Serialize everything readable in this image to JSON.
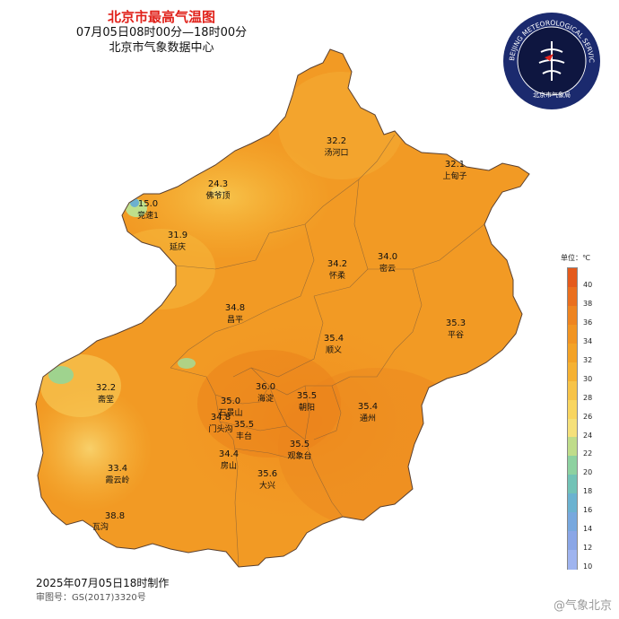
{
  "title": "北京市最高气温图",
  "subtitle": "07月05日08时00分—18时00分",
  "source": "北京市气象数据中心",
  "footer_date": "2025年07月05日18时制作",
  "footer_review": "审图号：GS(2017)3320号",
  "watermark": "@气象北京",
  "logo": {
    "ring_text": "BEIJING METEOROLOGICAL SERVICE",
    "name": "北京市气象局"
  },
  "legend": {
    "title": "单位：℃",
    "ticks": [
      "40",
      "38",
      "36",
      "34",
      "32",
      "30",
      "28",
      "26",
      "24",
      "22",
      "20",
      "18",
      "16",
      "14",
      "12",
      "10"
    ],
    "colors": [
      "#e45a1c",
      "#ea6f1e",
      "#ee8420",
      "#f19422",
      "#f3a226",
      "#f5b132",
      "#f7c348",
      "#f8d560",
      "#f5e07a",
      "#bfdc8a",
      "#8dd1a0",
      "#72c2b6",
      "#6bb2d0",
      "#78a8de",
      "#8aa6e6",
      "#9fb4ef"
    ]
  },
  "stations": [
    {
      "value": "32.2",
      "name": "汤河口"
    },
    {
      "value": "32.1",
      "name": "上甸子"
    },
    {
      "value": "24.3",
      "name": "佛爷顶"
    },
    {
      "value": "15.0",
      "name": "竞速1"
    },
    {
      "value": "31.9",
      "name": "延庆"
    },
    {
      "value": "34.2",
      "name": "怀柔"
    },
    {
      "value": "34.0",
      "name": "密云"
    },
    {
      "value": "34.8",
      "name": "昌平"
    },
    {
      "value": "35.3",
      "name": "平谷"
    },
    {
      "value": "35.4",
      "name": "顺义"
    },
    {
      "value": "32.2",
      "name": "斋堂"
    },
    {
      "value": "36.0",
      "name": "海淀"
    },
    {
      "value": "35.5",
      "name": "朝阳"
    },
    {
      "value": "35.0",
      "name": "石景山"
    },
    {
      "value": "34.8",
      "name": "门头沟"
    },
    {
      "value": "35.5",
      "name": "丰台"
    },
    {
      "value": "35.4",
      "name": "通州"
    },
    {
      "value": "34.4",
      "name": "房山"
    },
    {
      "value": "35.5",
      "name": "观象台"
    },
    {
      "value": "33.4",
      "name": "霞云岭"
    },
    {
      "value": "35.6",
      "name": "大兴"
    },
    {
      "value": "38.8",
      "name": ""
    },
    {
      "value": "",
      "name": "瓦沟"
    }
  ]
}
